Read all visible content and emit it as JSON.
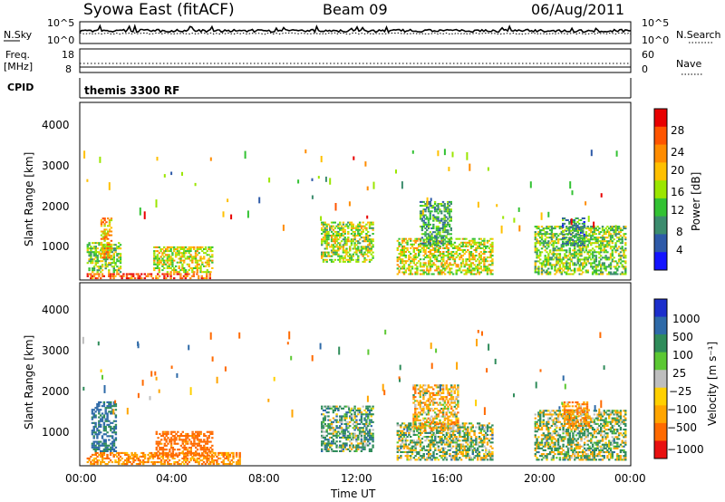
{
  "header": {
    "station": "Syowa East (fitACF)",
    "beam": "Beam 09",
    "date": "06/Aug/2011"
  },
  "noise_panel": {
    "left_label": "N.Sky",
    "right_label": "N.Search",
    "left_ticks": [
      "10^5",
      "10^0"
    ],
    "right_ticks": [
      "10^5",
      "10^0"
    ]
  },
  "freq_panel": {
    "left_label_1": "Freq.",
    "left_label_2": "[MHz]",
    "right_label": "Nave",
    "left_ticks": [
      "18",
      "8"
    ],
    "right_ticks": [
      "60",
      "0"
    ]
  },
  "cpid_panel": {
    "label": "CPID",
    "program": "themis 3300 RF"
  },
  "power_colorbar": {
    "label": "Power [dB]",
    "ticks": [
      "28",
      "24",
      "20",
      "16",
      "12",
      "8",
      "4"
    ],
    "colors": [
      "#e80000",
      "#ff5500",
      "#ff8c00",
      "#ffc000",
      "#9be600",
      "#33c233",
      "#3c8c6e",
      "#2e5aa8",
      "#1414ff"
    ]
  },
  "velocity_colorbar": {
    "label": "Velocity [m s⁻¹]",
    "ticks": [
      "1000",
      "500",
      "100",
      "25",
      "−25",
      "−100",
      "−500",
      "−1000"
    ],
    "colors": [
      "#1c2fcc",
      "#2e6aa8",
      "#2f8c5a",
      "#5cc833",
      "#bebebe",
      "#ffd000",
      "#ffa500",
      "#ff6a00",
      "#e81010"
    ]
  },
  "chart_data": [
    {
      "type": "heatmap",
      "title": "",
      "quantity": "power",
      "ylabel": "Slant Range [km]",
      "xlabel": "",
      "xlim": [
        0,
        24
      ],
      "ylim": [
        180,
        4500
      ],
      "yticks": [
        "1000",
        "2000",
        "3000",
        "4000"
      ],
      "units": "dB",
      "regions": [
        {
          "t0": 0.3,
          "t1": 5.7,
          "r0": 200,
          "r1": 350,
          "value": 28
        },
        {
          "t0": 0.3,
          "t1": 1.8,
          "r0": 350,
          "r1": 1100,
          "value": 14
        },
        {
          "t0": 0.9,
          "t1": 1.4,
          "r0": 700,
          "r1": 1700,
          "value": 22
        },
        {
          "t0": 3.2,
          "t1": 5.8,
          "r0": 350,
          "r1": 1000,
          "value": 18
        },
        {
          "t0": 10.5,
          "t1": 12.8,
          "r0": 600,
          "r1": 1600,
          "value": 16
        },
        {
          "t0": 13.8,
          "t1": 18.0,
          "r0": 300,
          "r1": 1200,
          "value": 18
        },
        {
          "t0": 14.8,
          "t1": 16.2,
          "r0": 1000,
          "r1": 2100,
          "value": 10
        },
        {
          "t0": 19.8,
          "t1": 23.8,
          "r0": 300,
          "r1": 1500,
          "value": 14
        },
        {
          "t0": 21.0,
          "t1": 22.0,
          "r0": 1000,
          "r1": 1700,
          "value": 8
        }
      ]
    },
    {
      "type": "heatmap",
      "title": "",
      "quantity": "velocity",
      "ylabel": "Slant Range [km]",
      "xlabel": "Time UT",
      "xlim": [
        0,
        24
      ],
      "ylim": [
        180,
        4500
      ],
      "xticks": [
        "00:00",
        "04:00",
        "08:00",
        "12:00",
        "16:00",
        "20:00",
        "00:00"
      ],
      "yticks": [
        "1000",
        "2000",
        "3000",
        "4000"
      ],
      "units": "m s-1",
      "regions": [
        {
          "t0": 0.3,
          "t1": 7.0,
          "r0": 200,
          "r1": 500,
          "value": -300
        },
        {
          "t0": 0.5,
          "t1": 1.6,
          "r0": 500,
          "r1": 1700,
          "value": 400
        },
        {
          "t0": 3.3,
          "t1": 5.8,
          "r0": 400,
          "r1": 1000,
          "value": -500
        },
        {
          "t0": 10.5,
          "t1": 12.8,
          "r0": 500,
          "r1": 1600,
          "value": 150
        },
        {
          "t0": 13.8,
          "t1": 18.0,
          "r0": 300,
          "r1": 1200,
          "value": 80
        },
        {
          "t0": 14.5,
          "t1": 16.5,
          "r0": 1000,
          "r1": 2100,
          "value": -150
        },
        {
          "t0": 19.8,
          "t1": 23.8,
          "r0": 300,
          "r1": 1500,
          "value": 60
        },
        {
          "t0": 21.0,
          "t1": 22.2,
          "r0": 1100,
          "r1": 1700,
          "value": -250
        }
      ]
    }
  ]
}
